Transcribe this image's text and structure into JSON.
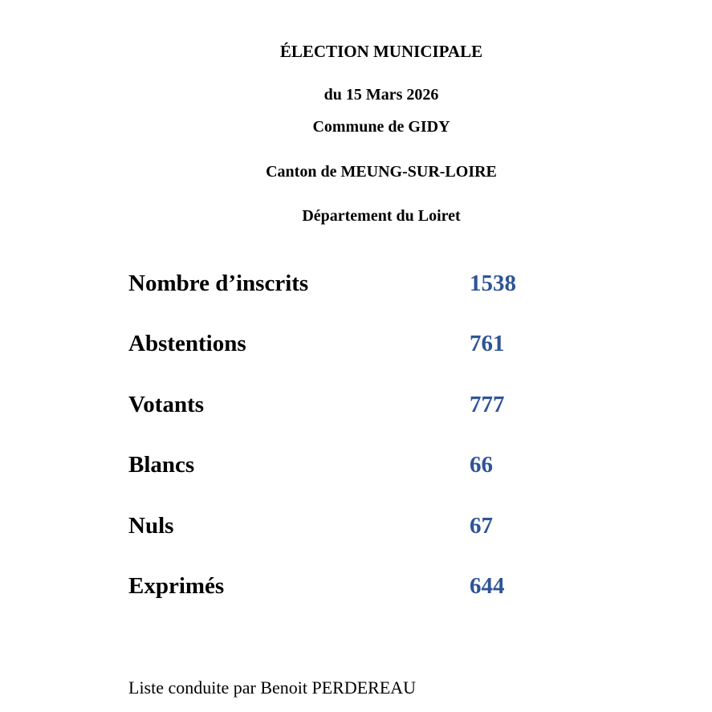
{
  "colors": {
    "background": "#FFFFFF",
    "text": "#000000",
    "value_blue": "#2F5496"
  },
  "header": {
    "title": "ÉLECTION MUNICIPALE",
    "date_line": "du 15 Mars 2026",
    "commune_line": "Commune de GIDY",
    "canton_line": "Canton de MEUNG-SUR-LOIRE",
    "departement_line": "Département du Loiret"
  },
  "stats": {
    "rows": [
      {
        "label": "Nombre d’inscrits",
        "value": "1538"
      },
      {
        "label": "Abstentions",
        "value": "761"
      },
      {
        "label": "Votants",
        "value": "777"
      },
      {
        "label": "Blancs",
        "value": "66"
      },
      {
        "label": "Nuls",
        "value": "67"
      },
      {
        "label": "Exprimés",
        "value": "644"
      }
    ]
  },
  "footer": {
    "list_line": "Liste conduite par Benoit PERDEREAU"
  }
}
